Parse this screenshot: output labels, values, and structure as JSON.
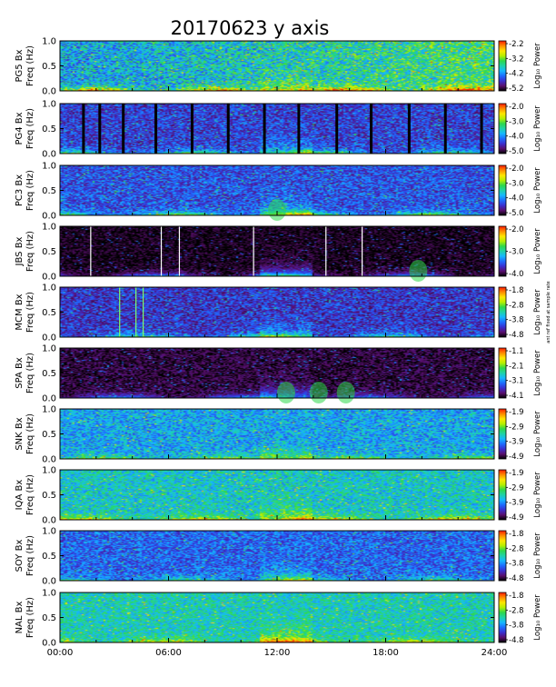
{
  "title": "20170623 y axis",
  "chart_data": {
    "type": "heatmap",
    "title": "20170623 y axis",
    "colorscale": [
      "#000000",
      "#5a0f6e",
      "#3a2fd0",
      "#1e6cff",
      "#16b8ff",
      "#1fd2a8",
      "#2ed84a",
      "#b6f000",
      "#ffe600",
      "#ff8c00",
      "#ff1a00"
    ],
    "x_ticks": [
      "00:00",
      "06:00",
      "12:00",
      "18:00",
      "24:00"
    ],
    "x_range_hours": [
      0,
      24
    ],
    "y_range_hz": [
      0,
      1.0
    ],
    "y_ticks": [
      "0.0",
      "0.5",
      "1.0"
    ],
    "colorbar_label": "Log₁₀ Power",
    "note": "ant ref fixed at sample rate",
    "panels": [
      {
        "station": "PG5 Bx",
        "ylabel_sub": "Freq (Hz)",
        "cb_ticks": [
          "-2.2",
          "-3.2",
          "-4.2",
          "-5.2"
        ],
        "bg": 0.38,
        "grad": 0.18,
        "gamp": 0.5,
        "nz": 0.2,
        "lines": [],
        "blk": [],
        "pulses": [],
        "note": false
      },
      {
        "station": "PG4 Bx",
        "ylabel_sub": "Freq (Hz)",
        "cb_ticks": [
          "-2.0",
          "-3.0",
          "-4.0",
          "-5.0"
        ],
        "bg": 0.22,
        "grad": 0.0,
        "gamp": 0.4,
        "nz": 0.14,
        "lines": [],
        "blk": [
          1.3,
          2.2,
          3.5,
          5.3,
          7.3,
          9.3,
          11.3,
          13.2,
          15.3,
          17.2,
          19.3,
          21.3,
          23.3
        ],
        "pulses": [],
        "note": false
      },
      {
        "station": "PC3 Bx",
        "ylabel_sub": "Freq (Hz)",
        "cb_ticks": [
          "-2.0",
          "-3.0",
          "-4.0",
          "-5.0"
        ],
        "bg": 0.25,
        "grad": 0.0,
        "gamp": 0.45,
        "nz": 0.14,
        "lines": [],
        "blk": [],
        "pulses": [
          12.0
        ],
        "note": false
      },
      {
        "station": "JBS Bx",
        "ylabel_sub": "Freq (Hz)",
        "cb_ticks": [
          "-2.0",
          "-3.0",
          "-4.0"
        ],
        "bg": 0.02,
        "grad": 0.0,
        "gamp": 0.35,
        "nz": 0.07,
        "lines": [
          1.7,
          5.6,
          6.6,
          10.7,
          14.7,
          16.7
        ],
        "blk": [],
        "pulses": [
          19.8
        ],
        "note": false
      },
      {
        "station": "MCM Bx",
        "ylabel_sub": "Freq (Hz)",
        "cb_ticks": [
          "-1.8",
          "-2.8",
          "-3.8",
          "-4.8"
        ],
        "bg": 0.2,
        "grad": 0.0,
        "gamp": 0.35,
        "nz": 0.14,
        "lines": [
          3.3,
          4.2,
          4.6
        ],
        "blk": [],
        "pulses": [],
        "note": true
      },
      {
        "station": "SPA Bx",
        "ylabel_sub": "Freq (Hz)",
        "cb_ticks": [
          "-1.1",
          "-2.1",
          "-3.1",
          "-4.1"
        ],
        "bg": 0.05,
        "grad": 0.0,
        "gamp": 0.3,
        "nz": 0.08,
        "lines": [],
        "blk": [],
        "pulses": [
          12.5,
          14.3,
          15.8
        ],
        "note": false
      },
      {
        "station": "SNK Bx",
        "ylabel_sub": "Freq (Hz)",
        "cb_ticks": [
          "-1.9",
          "-2.9",
          "-3.9",
          "-4.9"
        ],
        "bg": 0.38,
        "grad": 0.0,
        "gamp": 0.3,
        "nz": 0.15,
        "lines": [],
        "blk": [],
        "pulses": [],
        "note": false
      },
      {
        "station": "IQA Bx",
        "ylabel_sub": "Freq (Hz)",
        "cb_ticks": [
          "-1.9",
          "-2.9",
          "-3.9",
          "-4.9"
        ],
        "bg": 0.46,
        "grad": 0.0,
        "gamp": 0.35,
        "nz": 0.15,
        "lines": [],
        "blk": [],
        "pulses": [],
        "note": false
      },
      {
        "station": "SOY Bx",
        "ylabel_sub": "Freq (Hz)",
        "cb_ticks": [
          "-1.8",
          "-2.8",
          "-3.8",
          "-4.8"
        ],
        "bg": 0.28,
        "grad": 0.0,
        "gamp": 0.3,
        "nz": 0.14,
        "lines": [],
        "blk": [],
        "pulses": [],
        "note": false
      },
      {
        "station": "NAL Bx",
        "ylabel_sub": "Freq (Hz)",
        "cb_ticks": [
          "-1.8",
          "-2.8",
          "-3.8",
          "-4.8"
        ],
        "bg": 0.48,
        "grad": 0.0,
        "gamp": 0.3,
        "nz": 0.14,
        "lines": [],
        "blk": [],
        "pulses": [],
        "note": false
      }
    ]
  }
}
